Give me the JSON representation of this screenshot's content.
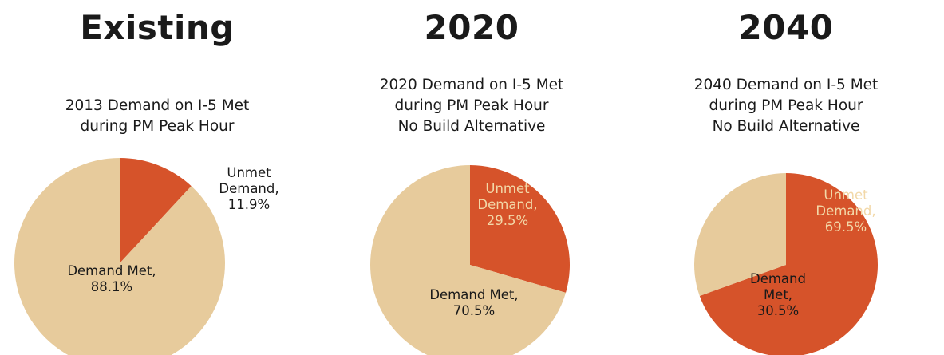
{
  "colors": {
    "met": "#e7cb9c",
    "unmet": "#d6532a",
    "text_dark": "#1a1a1a",
    "text_on_unmet": "#f2d8a8"
  },
  "chart_data": [
    {
      "type": "pie",
      "heading": "Existing",
      "title": [
        "2013 Demand on I-5 Met",
        "during PM Peak Hour"
      ],
      "slices": [
        {
          "label": [
            "Unmet",
            "Demand,",
            "11.9%"
          ],
          "value": 11.9,
          "color": "#d6532a"
        },
        {
          "label": [
            "Demand Met,",
            "88.1%"
          ],
          "value": 88.1,
          "color": "#e7cb9c"
        }
      ]
    },
    {
      "type": "pie",
      "heading": "2020",
      "title": [
        "2020 Demand on I-5 Met",
        "during PM Peak Hour",
        "No Build Alternative"
      ],
      "slices": [
        {
          "label": [
            "Unmet",
            "Demand,",
            "29.5%"
          ],
          "value": 29.5,
          "color": "#d6532a"
        },
        {
          "label": [
            "Demand Met,",
            "70.5%"
          ],
          "value": 70.5,
          "color": "#e7cb9c"
        }
      ]
    },
    {
      "type": "pie",
      "heading": "2040",
      "title": [
        "2040 Demand on I-5 Met",
        "during PM Peak Hour",
        "No Build Alternative"
      ],
      "slices": [
        {
          "label": [
            "Unmet",
            "Demand,",
            "69.5%"
          ],
          "value": 69.5,
          "color": "#d6532a"
        },
        {
          "label": [
            "Demand",
            "Met,",
            "30.5%"
          ],
          "value": 30.5,
          "color": "#e7cb9c"
        }
      ]
    }
  ]
}
